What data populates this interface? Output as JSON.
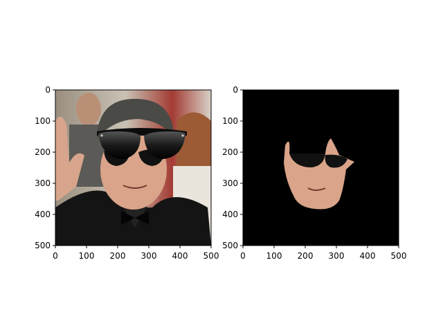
{
  "panels": [
    {
      "id": "left",
      "content": "photo-with-sunglasses-overlay",
      "x_ticks": [
        "0",
        "100",
        "200",
        "300",
        "400",
        "500"
      ],
      "y_ticks": [
        "0",
        "100",
        "200",
        "300",
        "400",
        "500"
      ],
      "x_range": [
        0,
        500
      ],
      "y_range": [
        0,
        500
      ]
    },
    {
      "id": "right",
      "content": "masked-face-on-black",
      "x_ticks": [
        "0",
        "100",
        "200",
        "300",
        "400",
        "500"
      ],
      "y_ticks": [
        "0",
        "100",
        "200",
        "300",
        "400",
        "500"
      ],
      "x_range": [
        0,
        500
      ],
      "y_range": [
        0,
        500
      ]
    }
  ],
  "colors": {
    "axis": "#000000",
    "mask_background": "#000000",
    "skin": "#d9a489",
    "hair": "#4a4a46",
    "jacket": "#151515",
    "lenses": "#111111"
  }
}
